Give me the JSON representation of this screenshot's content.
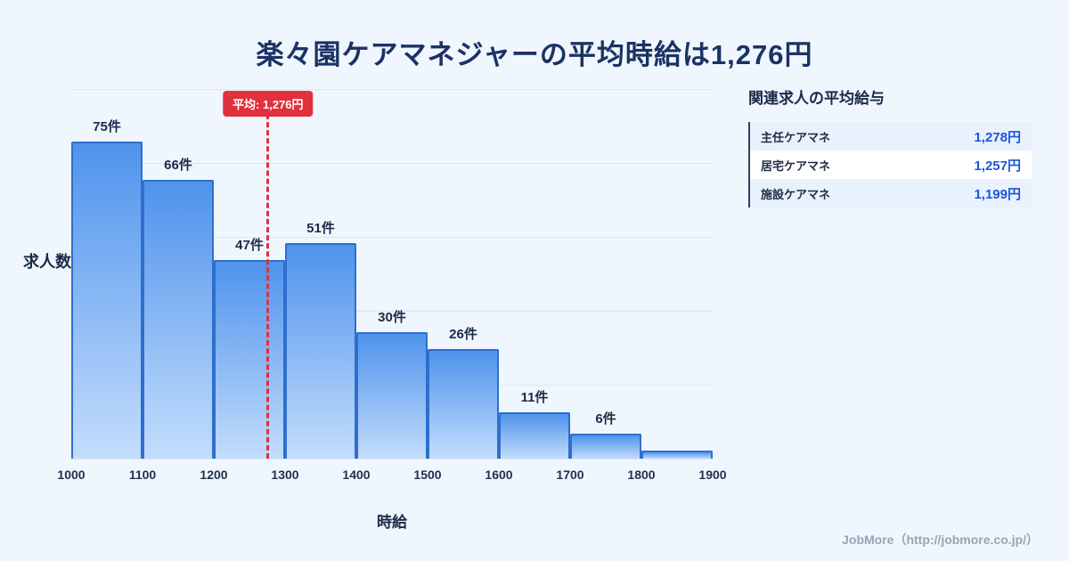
{
  "title": "楽々園ケアマネジャーの平均時給は1,276円",
  "chart_data": {
    "type": "bar",
    "subtype": "histogram",
    "title": "楽々園ケアマネジャーの平均時給は1,276円",
    "xlabel": "時給",
    "ylabel": "求人数",
    "x_range": [
      1000,
      1900
    ],
    "x_ticks": [
      "1000",
      "1100",
      "1200",
      "1300",
      "1400",
      "1500",
      "1600",
      "1700",
      "1800",
      "1900"
    ],
    "categories": [
      "1000-1100",
      "1100-1200",
      "1200-1300",
      "1300-1400",
      "1400-1500",
      "1500-1600",
      "1600-1700",
      "1700-1800",
      "1800-1900"
    ],
    "values": [
      75,
      66,
      47,
      51,
      30,
      26,
      11,
      6,
      2
    ],
    "labels": [
      "75件",
      "66件",
      "47件",
      "51件",
      "30件",
      "26件",
      "11件",
      "6件",
      ""
    ],
    "ylim": [
      0,
      80
    ],
    "grid": true,
    "average": {
      "value": 1276,
      "label": "平均: 1,276円"
    },
    "colors": {
      "bar_top": "#4f93ec",
      "bar_bottom": "#c3ddfc",
      "bar_border": "#2e6fce",
      "accent": "#e0313c"
    }
  },
  "side_panel": {
    "title": "関連求人の平均給与",
    "rows": [
      {
        "name": "主任ケアマネ",
        "value": "1,278円"
      },
      {
        "name": "居宅ケアマネ",
        "value": "1,257円"
      },
      {
        "name": "施設ケアマネ",
        "value": "1,199円"
      }
    ]
  },
  "footer": {
    "credit": "JobMore（http://jobmore.co.jp/）"
  }
}
